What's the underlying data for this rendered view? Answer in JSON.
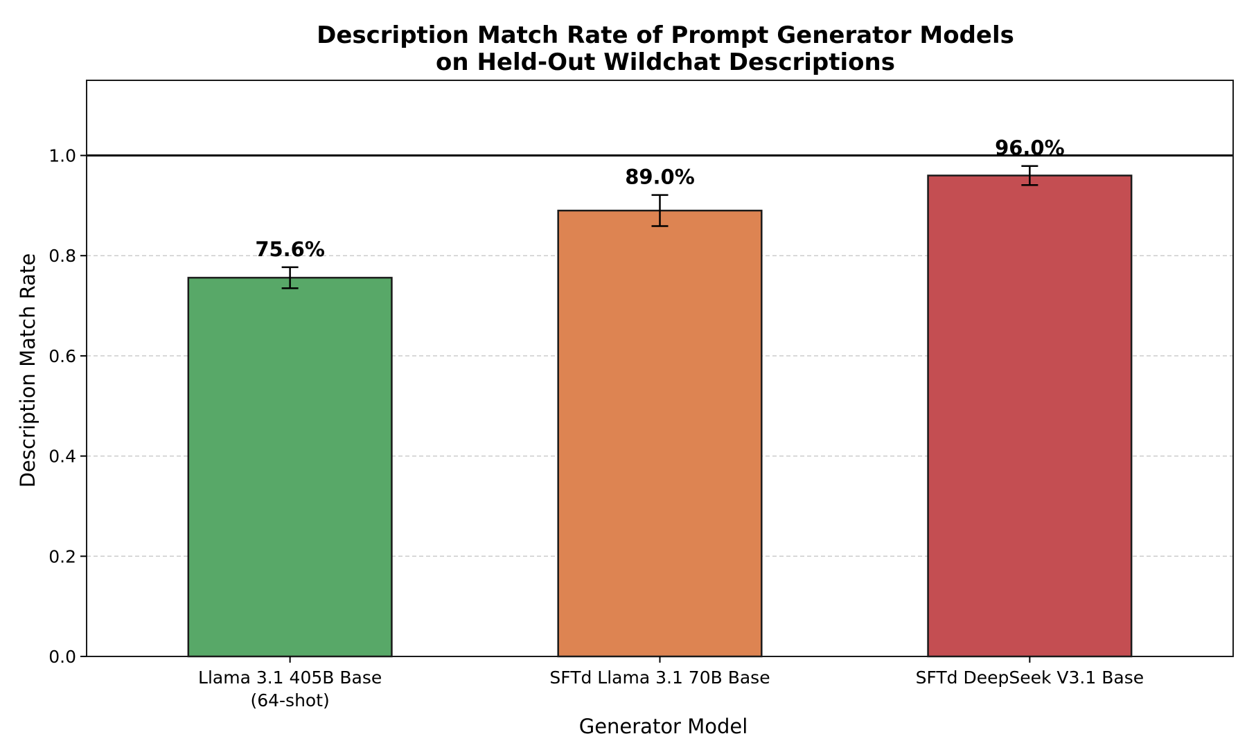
{
  "chart_data": {
    "type": "bar",
    "title": [
      "Description Match Rate of Prompt Generator Models",
      "on Held-Out Wildchat Descriptions"
    ],
    "xlabel": "Generator Model",
    "ylabel": "Description Match Rate",
    "categories": [
      [
        "Llama 3.1 405B Base",
        "(64-shot)"
      ],
      [
        "SFTd Llama 3.1 70B Base"
      ],
      [
        "SFTd DeepSeek V3.1 Base"
      ]
    ],
    "values": [
      0.756,
      0.89,
      0.96
    ],
    "error": [
      0.021,
      0.031,
      0.019
    ],
    "value_labels": [
      "75.6%",
      "89.0%",
      "96.0%"
    ],
    "colors": [
      "#58a868",
      "#dd8452",
      "#c44e52"
    ],
    "ylim": [
      0,
      1.15
    ],
    "yticks": [
      0.0,
      0.2,
      0.4,
      0.6,
      0.8,
      1.0
    ],
    "ytick_labels": [
      "0.0",
      "0.2",
      "0.4",
      "0.6",
      "0.8",
      "1.0"
    ],
    "reference_line": 1.0,
    "grid": "y-dashed",
    "legend": "none"
  }
}
